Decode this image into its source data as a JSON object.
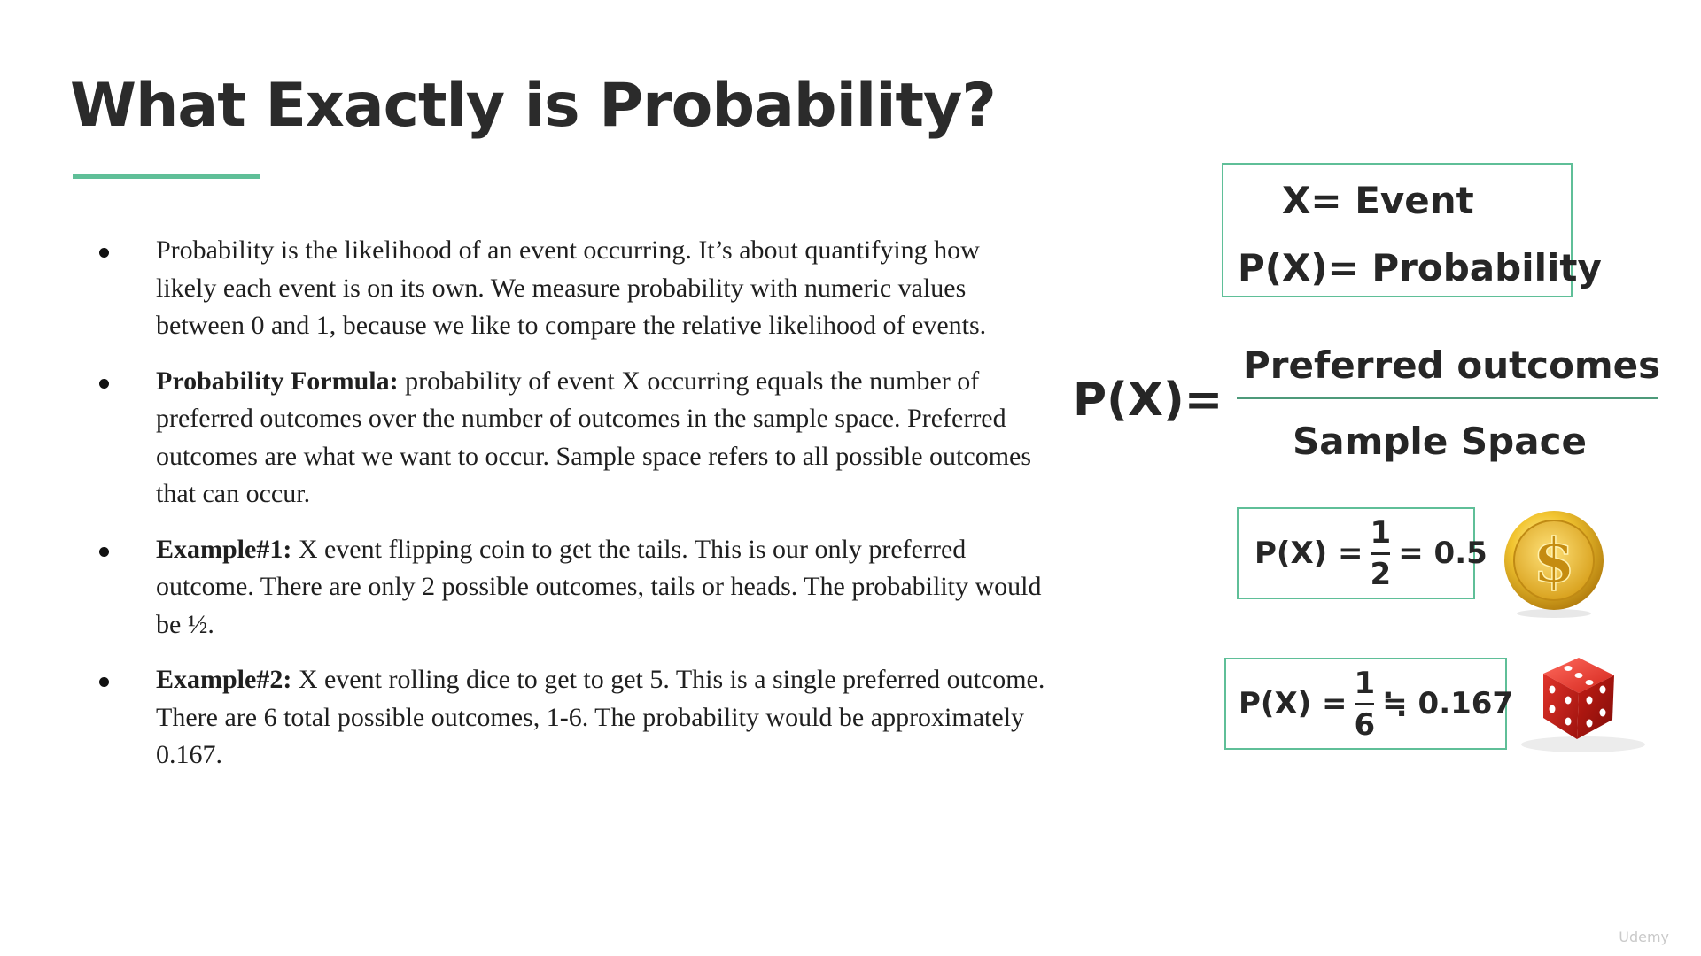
{
  "title": "What Exactly is Probability?",
  "bullets": [
    {
      "bold": "",
      "text": "Probability is the likelihood of an event occurring. It’s about quantifying how likely each event is on its own. We measure probability with numeric values between 0 and 1, because we like to compare the relative likelihood of events."
    },
    {
      "bold": "Probability Formula:",
      "text": " probability of event X occurring equals the number of preferred outcomes over the number of outcomes in the sample space. Preferred outcomes are what we want to occur. Sample space refers to all possible outcomes that can occur."
    },
    {
      "bold": "Example#1:",
      "text": " X event flipping coin to get the tails. This is our only preferred outcome. There are only 2 possible outcomes, tails or heads. The probability would be ½."
    },
    {
      "bold": "Example#2:",
      "text": " X event rolling dice to get to get 5. This is a single preferred outcome. There are 6  total possible outcomes, 1-6. The probability would be approximately 0.167."
    }
  ],
  "definitions": {
    "line1": "X= Event",
    "line2": "P(X)= Probability"
  },
  "formula": {
    "lhs": "P(X)=",
    "numerator": "Preferred outcomes",
    "denominator": "Sample Space"
  },
  "example_coin": {
    "label": "P(X) =",
    "numerator": "1",
    "denominator": "2",
    "result": "= 0.5"
  },
  "example_dice": {
    "label": "P(X) =",
    "numerator": "1",
    "denominator": "6",
    "result": "≒ 0.167"
  },
  "icons": {
    "coin": "gold-dollar-coin-icon",
    "dice": "red-dice-icon"
  },
  "colors": {
    "accent": "#5fbf98",
    "text": "#262626"
  },
  "watermark": "Udemy"
}
